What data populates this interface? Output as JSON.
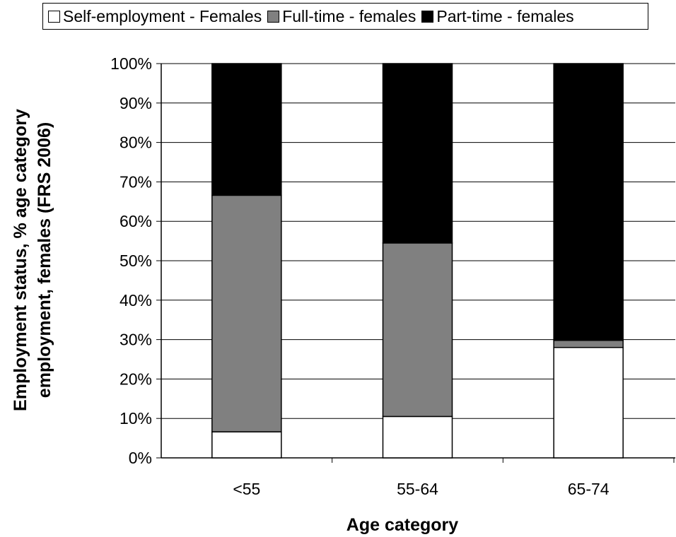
{
  "legend": {
    "items": [
      {
        "label": "Self-employment - Females",
        "color": "#ffffff"
      },
      {
        "label": "Full-time - females",
        "color": "#808080"
      },
      {
        "label": "Part-time - females",
        "color": "#000000"
      }
    ]
  },
  "chart_data": {
    "type": "bar",
    "stacked": true,
    "title": "",
    "xlabel": "Age category",
    "ylabel_lines": [
      "Employment status, % age category",
      "employment, females (FRS 2006)"
    ],
    "categories": [
      "<55",
      "55-64",
      "65-74"
    ],
    "series": [
      {
        "name": "Self-employment - Females",
        "color": "#ffffff",
        "values": [
          6.6,
          10.5,
          28.0
        ]
      },
      {
        "name": "Full-time - females",
        "color": "#808080",
        "values": [
          60.0,
          44.0,
          1.8
        ]
      },
      {
        "name": "Part-time - females",
        "color": "#000000",
        "values": [
          33.4,
          45.5,
          70.2
        ]
      }
    ],
    "ylim": [
      0,
      100
    ],
    "yticks": [
      "0%",
      "10%",
      "20%",
      "30%",
      "40%",
      "50%",
      "60%",
      "70%",
      "80%",
      "90%",
      "100%"
    ],
    "grid": true,
    "legend_position": "top"
  }
}
